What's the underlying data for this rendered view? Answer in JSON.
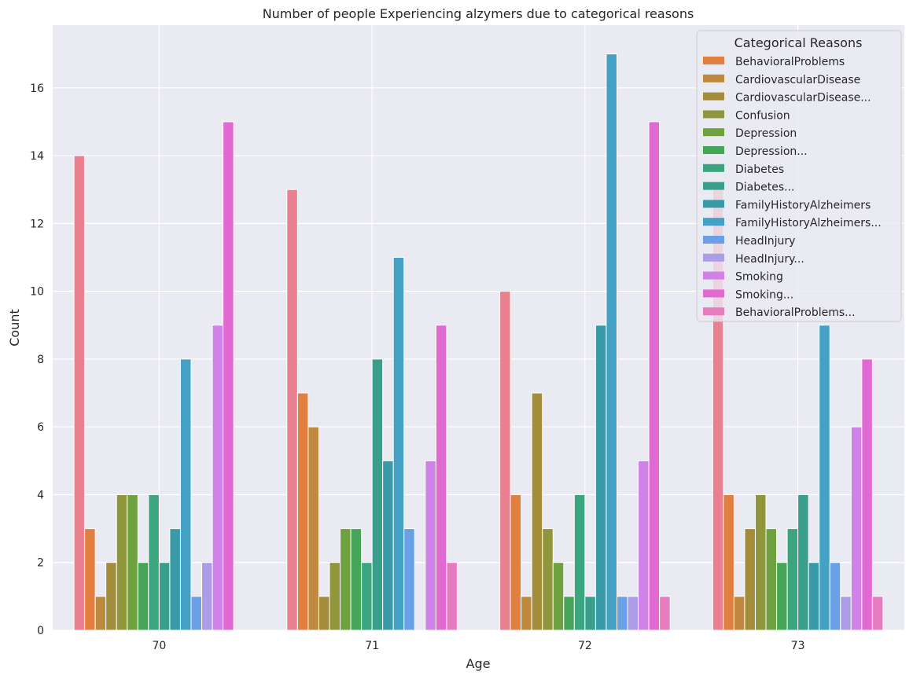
{
  "chart_data": {
    "type": "bar",
    "title": "Number of people Experiencing alzymers due to categorical reasons",
    "xlabel": "Age",
    "ylabel": "Count",
    "ylim": [
      0,
      17.85
    ],
    "yticks": [
      0,
      2,
      4,
      6,
      8,
      10,
      12,
      14,
      16
    ],
    "grid": true,
    "legend_title": "Categorical Reasons",
    "legend_placement": "top-right",
    "categories": [
      "70",
      "71",
      "72",
      "73"
    ],
    "series": [
      {
        "name": "",
        "color": "#e8808f",
        "values": [
          14,
          13,
          10,
          13
        ]
      },
      {
        "name": "BehavioralProblems",
        "color": "#e07f40",
        "values": [
          3,
          7,
          4,
          4
        ]
      },
      {
        "name": "CardiovascularDisease",
        "color": "#c08a3e",
        "values": [
          1,
          6,
          1,
          1
        ]
      },
      {
        "name": "CardiovascularDisease...",
        "color": "#a48d3a",
        "values": [
          2,
          1,
          7,
          3
        ]
      },
      {
        "name": "Confusion",
        "color": "#8f963b",
        "values": [
          4,
          2,
          3,
          4
        ]
      },
      {
        "name": "Depression",
        "color": "#6fa140",
        "values": [
          4,
          3,
          2,
          3
        ]
      },
      {
        "name": "Depression...",
        "color": "#45a657",
        "values": [
          2,
          3,
          1,
          2
        ]
      },
      {
        "name": "Diabetes",
        "color": "#3ba57f",
        "values": [
          4,
          2,
          4,
          3
        ]
      },
      {
        "name": "Diabetes...",
        "color": "#3a9e8c",
        "values": [
          2,
          8,
          1,
          4
        ]
      },
      {
        "name": "FamilyHistoryAlzheimers",
        "color": "#3a9ba8",
        "values": [
          3,
          5,
          9,
          2
        ]
      },
      {
        "name": "FamilyHistoryAlzheimers...",
        "color": "#44a0c4",
        "values": [
          8,
          11,
          17,
          9
        ]
      },
      {
        "name": "HeadInjury",
        "color": "#6aa0e6",
        "values": [
          1,
          3,
          1,
          2
        ]
      },
      {
        "name": "HeadInjury...",
        "color": "#ad9de8",
        "values": [
          2,
          0,
          1,
          1
        ]
      },
      {
        "name": "Smoking",
        "color": "#cf82e8",
        "values": [
          9,
          5,
          5,
          6
        ]
      },
      {
        "name": "Smoking...",
        "color": "#e06ad2",
        "values": [
          15,
          9,
          15,
          8
        ]
      },
      {
        "name": "BehavioralProblems...",
        "color": "#e67cc0",
        "values": [
          0,
          2,
          1,
          1
        ]
      }
    ]
  }
}
